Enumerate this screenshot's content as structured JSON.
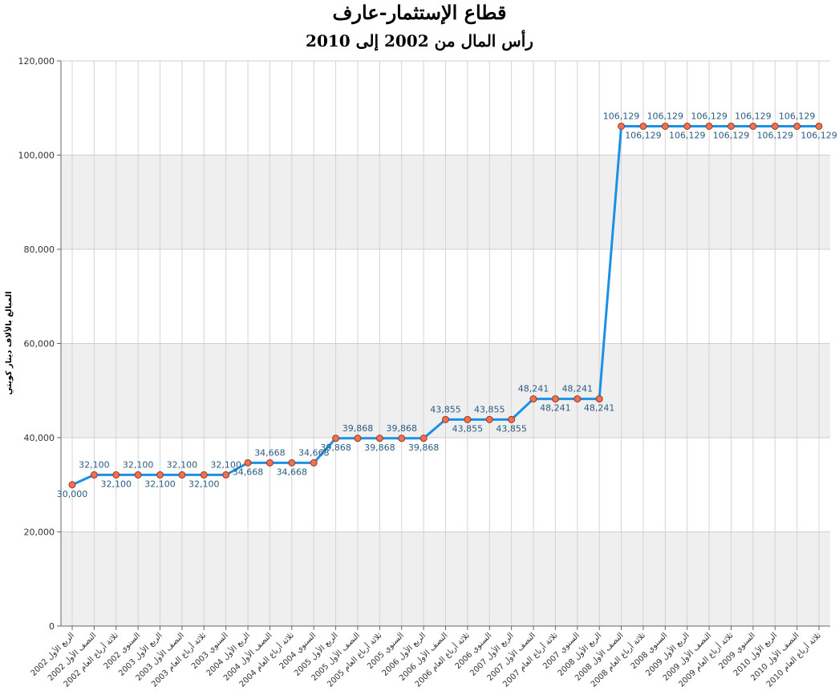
{
  "chart_data": {
    "type": "line",
    "title": "قطاع الإستثمار-عارف",
    "subtitle": "رأس المال من 2002 إلى 2010",
    "y_label": "المبالغ بالألاف دينار كويتي",
    "categories": [
      "الربع الأول 2002",
      "النصف الأول 2002",
      "ثلاثة أرباع العام 2002",
      "السنوي 2002",
      "الربع الأول 2003",
      "النصف الأول 2003",
      "ثلاثة أرباع العام 2003",
      "السنوي 2003",
      "الربع الأول 2004",
      "النصف الأول 2004",
      "ثلاثة أرباع العام 2004",
      "السنوي 2004",
      "الربع الأول 2005",
      "النصف الأول 2005",
      "ثلاثة أرباع العام 2005",
      "السنوي 2005",
      "الربع الأول 2006",
      "النصف الأول 2006",
      "ثلاثة أرباع العام 2006",
      "السنوي 2006",
      "الربع الأول 2007",
      "النصف الأول 2007",
      "ثلاثة أرباع العام 2007",
      "السنوي 2007",
      "الربع الأول 2008",
      "النصف الأول 2008",
      "ثلاثة أرباع العام 2008",
      "السنوي 2008",
      "الربع الأول 2009",
      "النصف الأول 2009",
      "ثلاثة أرباع العام 2009",
      "السنوي 2009",
      "الربع الأول 2010",
      "النصف الأول 2010",
      "ثلاثة أرباع العام 2010"
    ],
    "values": [
      30000,
      32100,
      32100,
      32100,
      32100,
      32100,
      32100,
      32100,
      34668,
      34668,
      34668,
      34668,
      39868,
      39868,
      39868,
      39868,
      39868,
      43855,
      43855,
      43855,
      43855,
      48241,
      48241,
      48241,
      48241,
      106129,
      106129,
      106129,
      106129,
      106129,
      106129,
      106129,
      106129,
      106129,
      106129
    ],
    "value_labels": [
      "30,000",
      "32,100",
      "32,100",
      "32,100",
      "32,100",
      "32,100",
      "32,100",
      "32,100",
      "34,668",
      "34,668",
      "34,668",
      "34,668",
      "39,868",
      "39,868",
      "39,868",
      "39,868",
      "39,868",
      "43,855",
      "43,855",
      "43,855",
      "43,855",
      "48,241",
      "48,241",
      "48,241",
      "48,241",
      "106,129",
      "106,129",
      "106,129",
      "106,129",
      "106,129",
      "106,129",
      "106,129",
      "106,129",
      "106,129",
      "106,129"
    ],
    "color": "#1a90e6",
    "marker_color": "#f0704f",
    "ylim": [
      0,
      120000
    ],
    "yticks": [
      {
        "value": 0,
        "label": "0"
      },
      {
        "value": 20000,
        "label": "20,000"
      },
      {
        "value": 40000,
        "label": "40,000"
      },
      {
        "value": 60000,
        "label": "60,000"
      },
      {
        "value": 80000,
        "label": "80,000"
      },
      {
        "value": 100000,
        "label": "100,000"
      },
      {
        "value": 120000,
        "label": "120,000"
      }
    ],
    "grid": true
  }
}
